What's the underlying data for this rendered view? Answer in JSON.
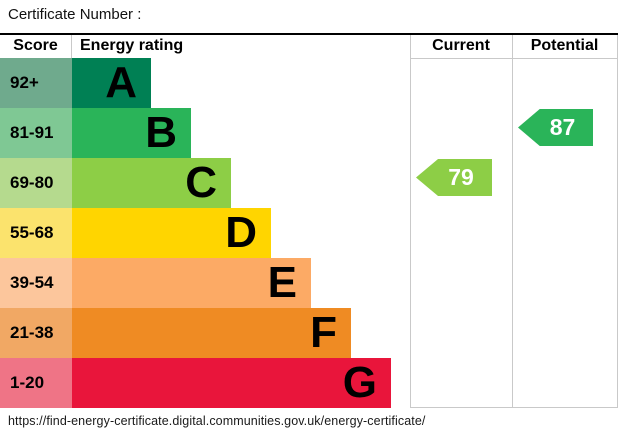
{
  "title": "Certificate Number :",
  "header": {
    "score": "Score",
    "rating": "Energy rating",
    "current": "Current",
    "potential": "Potential"
  },
  "bands": [
    {
      "letter": "A",
      "range": "92+",
      "color": "#008054",
      "light_color": "#6faa8d"
    },
    {
      "letter": "B",
      "range": "81-91",
      "color": "#2ab459",
      "light_color": "#7fc894"
    },
    {
      "letter": "C",
      "range": "69-80",
      "color": "#8dce46",
      "light_color": "#b5da8e"
    },
    {
      "letter": "D",
      "range": "55-68",
      "color": "#ffd500",
      "light_color": "#fbe36d"
    },
    {
      "letter": "E",
      "range": "39-54",
      "color": "#fcaa65",
      "light_color": "#fcc69c"
    },
    {
      "letter": "F",
      "range": "21-38",
      "color": "#ef8b23",
      "light_color": "#f1a864"
    },
    {
      "letter": "G",
      "range": "1-20",
      "color": "#e9153b",
      "light_color": "#ef7486"
    }
  ],
  "current": {
    "value": "79",
    "band": "C",
    "row_index": 2,
    "color": "#8dce46"
  },
  "potential": {
    "value": "87",
    "band": "B",
    "row_index": 1,
    "color": "#2ab459"
  },
  "footer_url": "https://find-energy-certificate.digital.communities.gov.uk/energy-certificate/",
  "chart_data": {
    "type": "bar",
    "title": "Certificate Number :",
    "columns": [
      "Score",
      "Energy rating",
      "Current",
      "Potential"
    ],
    "categories": [
      "A",
      "B",
      "C",
      "D",
      "E",
      "F",
      "G"
    ],
    "score_ranges": [
      "92+",
      "81-91",
      "69-80",
      "55-68",
      "39-54",
      "21-38",
      "1-20"
    ],
    "band_colors": [
      "#008054",
      "#2ab459",
      "#8dce46",
      "#ffd500",
      "#fcaa65",
      "#ef8b23",
      "#e9153b"
    ],
    "band_light_colors": [
      "#6faa8d",
      "#7fc894",
      "#b5da8e",
      "#fbe36d",
      "#fcc69c",
      "#f1a864",
      "#ef7486"
    ],
    "bar_relative_lengths": [
      1,
      2,
      3,
      4,
      5,
      6,
      7
    ],
    "current": {
      "value": 79,
      "band": "C"
    },
    "potential": {
      "value": 87,
      "band": "B"
    },
    "legend": "off",
    "grid": "off"
  }
}
